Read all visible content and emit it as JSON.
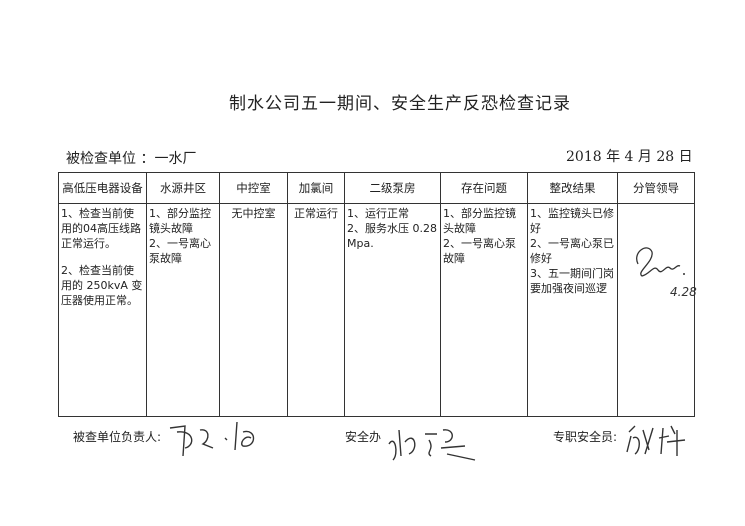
{
  "title": "制水公司五一期间、安全生产反恐检查记录",
  "inspected_unit_label": "被检查单位 ：一水厂",
  "date": "2018 年 4 月 28 日",
  "table": {
    "headers": [
      "高低压电器设备",
      "水源井区",
      "中控室",
      "加氯间",
      "二级泵房",
      "存在问题",
      "整改结果",
      "分管领导"
    ],
    "row": {
      "col1": [
        "1、检查当前使用的04高压线路正常运行。",
        "2、检查当前使用的 250kvA 变压器使用正常。"
      ],
      "col2": [
        "1、部分监控镜头故障",
        "2、一号离心泵故障"
      ],
      "col3": "无中控室",
      "col4": "正常运行",
      "col5": [
        "1、运行正常",
        "2、服务水压 0.28 Mpa."
      ],
      "col6": [
        "1、部分监控镜头故障",
        "2、一号离心泵故障"
      ],
      "col7": [
        "1、监控镜头已修好",
        "2、一号离心泵已修好",
        "3、五一期间门岗要加强夜间巡逻"
      ],
      "col8_signature_date": "4.28"
    }
  },
  "footer": {
    "responsible_label": "被查单位负责人:",
    "safety_office_label": "安全办",
    "safety_officer_label": "专职安全员:"
  }
}
